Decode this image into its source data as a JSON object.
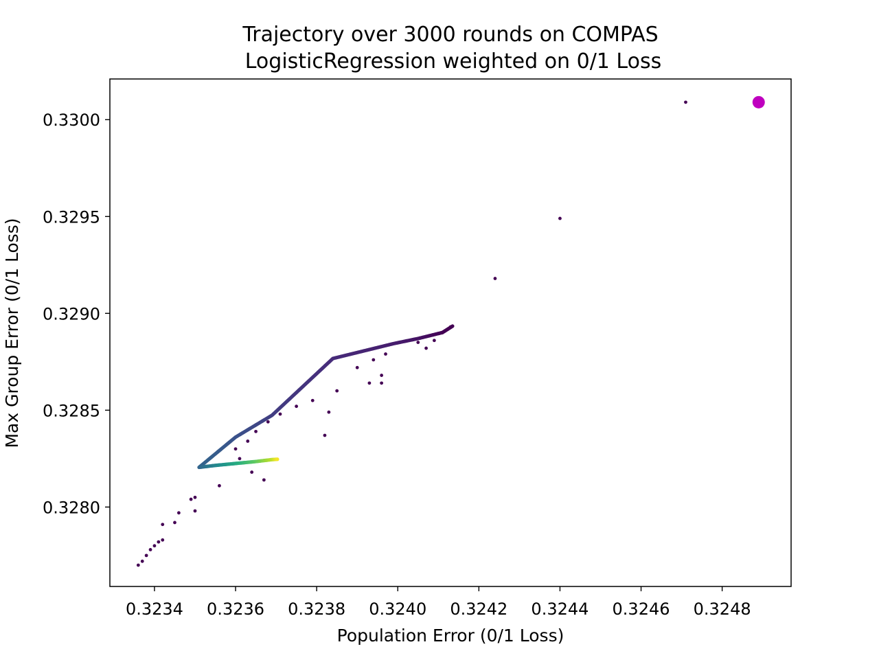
{
  "chart_data": {
    "type": "scatter",
    "title": "Trajectory over 3000 rounds on COMPAS",
    "subtitle": "LogisticRegression weighted on 0/1 Loss",
    "xlabel": "Population Error (0/1 Loss)",
    "ylabel": "Max Group Error (0/1 Loss)",
    "xlim": [
      0.32329,
      0.32497
    ],
    "ylim": [
      0.32759,
      0.33021
    ],
    "xticks": [
      "0.3234",
      "0.3236",
      "0.3238",
      "0.3240",
      "0.3242",
      "0.3244",
      "0.3246",
      "0.3248"
    ],
    "yticks": [
      "0.3280",
      "0.3285",
      "0.3290",
      "0.3295",
      "0.3300"
    ],
    "grid": false,
    "colormap": "viridis",
    "colormap_stops": [
      "#440154",
      "#472d7b",
      "#3b528b",
      "#2c728e",
      "#21918c",
      "#28ae80",
      "#5ec962",
      "#addc30",
      "#fde725"
    ],
    "highlight_color": "#bf00bf",
    "highlight_point": {
      "x": 0.32489,
      "y": 0.33009
    },
    "scatter_points": [
      [
        0.32471,
        0.33009
      ],
      [
        0.3244,
        0.32949
      ],
      [
        0.32424,
        0.32918
      ],
      [
        0.32413,
        0.32893
      ],
      [
        0.32411,
        0.3289
      ],
      [
        0.32409,
        0.32886
      ],
      [
        0.32407,
        0.32882
      ],
      [
        0.32405,
        0.32885
      ],
      [
        0.32397,
        0.32879
      ],
      [
        0.32394,
        0.32876
      ],
      [
        0.3239,
        0.32872
      ],
      [
        0.32385,
        0.3286
      ],
      [
        0.32383,
        0.32849
      ],
      [
        0.32382,
        0.32837
      ],
      [
        0.32396,
        0.32868
      ],
      [
        0.32396,
        0.32864
      ],
      [
        0.32393,
        0.32864
      ],
      [
        0.32379,
        0.32855
      ],
      [
        0.32375,
        0.32852
      ],
      [
        0.32371,
        0.32848
      ],
      [
        0.32368,
        0.32844
      ],
      [
        0.32365,
        0.32839
      ],
      [
        0.32363,
        0.32834
      ],
      [
        0.3236,
        0.3283
      ],
      [
        0.32361,
        0.32825
      ],
      [
        0.32367,
        0.32814
      ],
      [
        0.32364,
        0.32818
      ],
      [
        0.32356,
        0.32811
      ],
      [
        0.3235,
        0.32805
      ],
      [
        0.3235,
        0.32798
      ],
      [
        0.32346,
        0.32797
      ],
      [
        0.32345,
        0.32792
      ],
      [
        0.32342,
        0.32791
      ],
      [
        0.32349,
        0.32804
      ],
      [
        0.32342,
        0.32783
      ],
      [
        0.32341,
        0.32782
      ],
      [
        0.3234,
        0.3278
      ],
      [
        0.32339,
        0.32778
      ],
      [
        0.32338,
        0.32775
      ],
      [
        0.32337,
        0.32772
      ],
      [
        0.32336,
        0.3277
      ]
    ],
    "trajectory": [
      [
        0.324135,
        0.328934
      ],
      [
        0.32411,
        0.328901
      ],
      [
        0.32405,
        0.32887
      ],
      [
        0.32399,
        0.328844
      ],
      [
        0.32384,
        0.328767
      ],
      [
        0.32369,
        0.328474
      ],
      [
        0.3236,
        0.328361
      ],
      [
        0.32351,
        0.328205
      ],
      [
        0.32355,
        0.328215
      ],
      [
        0.3236,
        0.328225
      ],
      [
        0.32365,
        0.328235
      ],
      [
        0.32369,
        0.328245
      ],
      [
        0.323705,
        0.328247
      ]
    ],
    "trajectory_color_stops": [
      0,
      0,
      0.05,
      0.08,
      0.12,
      0.18,
      0.25,
      0.32,
      0.45,
      0.6,
      0.75,
      0.9,
      1.0
    ]
  }
}
